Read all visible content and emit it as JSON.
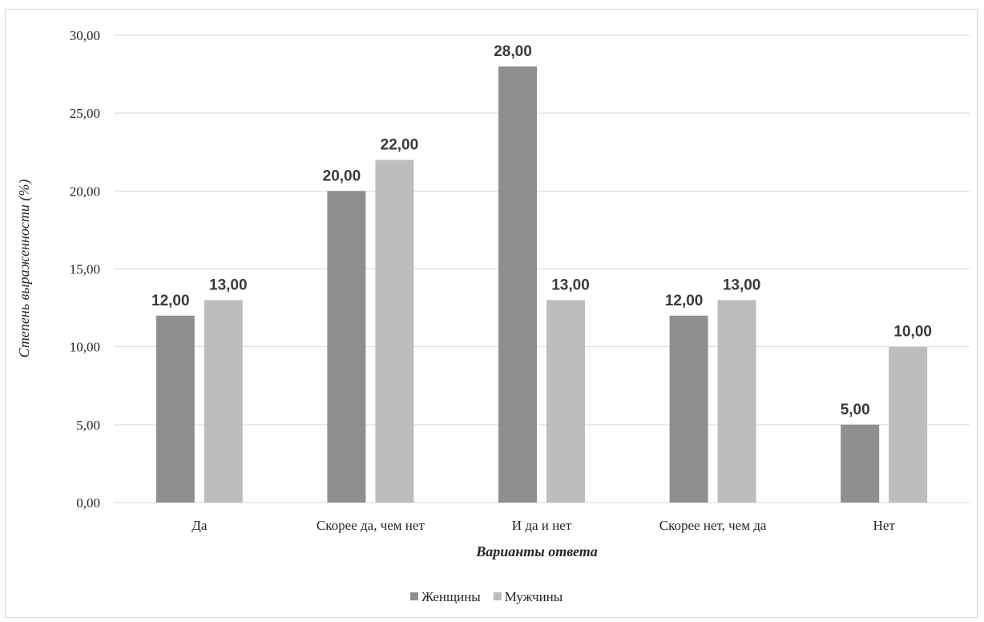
{
  "chart_data": {
    "type": "bar",
    "categories": [
      "Да",
      "Скорее да, чем нет",
      "И да и нет",
      "Скорее нет, чем да",
      "Нет"
    ],
    "series": [
      {
        "name": "Женщины",
        "values": [
          12,
          20,
          28,
          12,
          5
        ],
        "labels": [
          "12,00",
          "20,00",
          "28,00",
          "12,00",
          "5,00"
        ],
        "color": "#8f8f8f"
      },
      {
        "name": "Мужчины",
        "values": [
          13,
          22,
          13,
          13,
          10
        ],
        "labels": [
          "13,00",
          "22,00",
          "13,00",
          "13,00",
          "10,00"
        ],
        "color": "#bdbdbd"
      }
    ],
    "xlabel": "Варианты ответа",
    "ylabel": "Степень выраженности (%)",
    "ylim": [
      0,
      30
    ],
    "yticks": [
      0,
      5,
      10,
      15,
      20,
      25,
      30
    ],
    "ytick_labels": [
      "0,00",
      "5,00",
      "10,00",
      "15,00",
      "20,00",
      "25,00",
      "30,00"
    ],
    "grid": true,
    "legend_position": "bottom",
    "gridline_color": "#d9d9d9"
  }
}
